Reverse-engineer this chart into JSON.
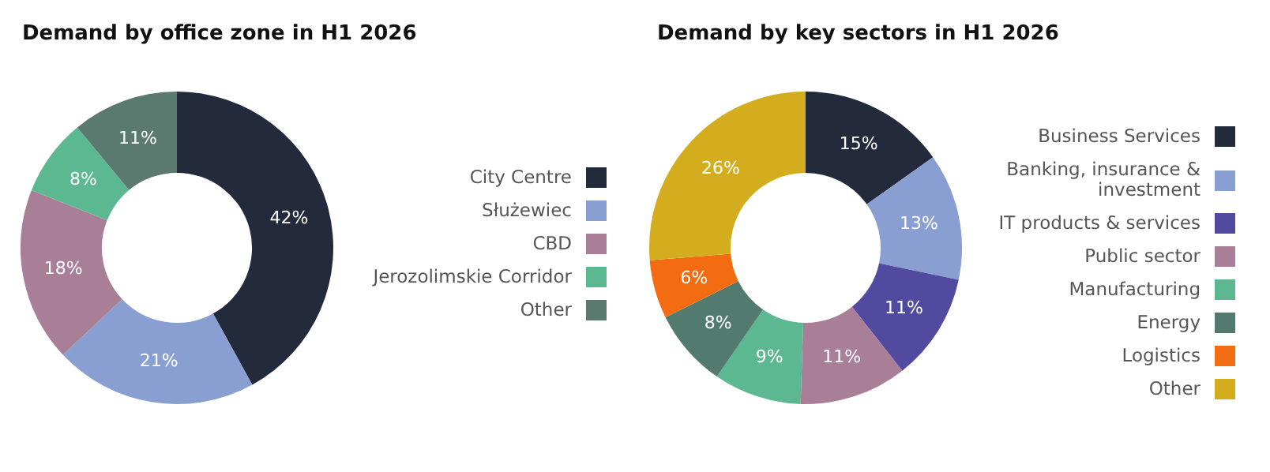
{
  "chart_data": [
    {
      "type": "donut",
      "title": "Demand by office zone in H1 2026",
      "categories": [
        "City Centre",
        "Służewiec",
        "CBD",
        "Jerozolimskie Corridor",
        "Other"
      ],
      "values": [
        42,
        21,
        18,
        8,
        11
      ],
      "value_labels": [
        "42%",
        "21%",
        "18%",
        "8%",
        "11%"
      ],
      "colors": [
        "#232a3b",
        "#8a9fd1",
        "#a97f98",
        "#5bb891",
        "#5a7a70"
      ],
      "legend": "right"
    },
    {
      "type": "donut",
      "title": "Demand by key sectors in H1 2026",
      "categories": [
        "Business Services",
        "Banking, insurance & investment",
        "IT products & services",
        "Public sector",
        "Manufacturing",
        "Energy",
        "Logistics",
        "Other"
      ],
      "values": [
        15,
        13,
        11,
        11,
        9,
        8,
        6,
        26
      ],
      "value_labels": [
        "15%",
        "13%",
        "11%",
        "11%",
        "9%",
        "8%",
        "6%",
        "26%"
      ],
      "colors": [
        "#232a3b",
        "#8a9fd1",
        "#524a9e",
        "#a97f98",
        "#5bb891",
        "#527a6e",
        "#f36c11",
        "#d4ad1f"
      ],
      "legend": "right"
    }
  ]
}
